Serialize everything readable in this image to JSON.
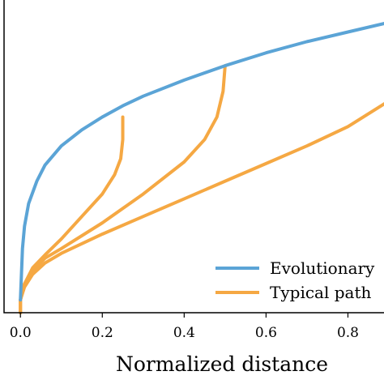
{
  "chart_data": {
    "type": "line",
    "title": "",
    "xlabel": "Normalized distance",
    "ylabel": "",
    "xlim": [
      -0.04,
      0.9
    ],
    "ylim": [
      0,
      1
    ],
    "x_ticks": [
      0.0,
      0.2,
      0.4,
      0.6,
      0.8
    ],
    "x_tick_labels": [
      "0.0",
      "0.2",
      "0.4",
      "0.6",
      "0.8"
    ],
    "grid": false,
    "legend": {
      "placement": "bottom-right",
      "entries": [
        {
          "label": "Evolutionary",
          "color": "#5ba4d6"
        },
        {
          "label": "Typical path",
          "color": "#f5a843"
        }
      ]
    },
    "series": [
      {
        "name": "Evolutionary",
        "color": "#5ba4d6",
        "x": [
          0.0,
          0.005,
          0.01,
          0.02,
          0.04,
          0.06,
          0.1,
          0.15,
          0.2,
          0.25,
          0.3,
          0.4,
          0.5,
          0.6,
          0.7,
          0.8,
          0.9
        ],
        "y": [
          0.04,
          0.2,
          0.27,
          0.34,
          0.41,
          0.46,
          0.52,
          0.57,
          0.61,
          0.645,
          0.675,
          0.725,
          0.77,
          0.81,
          0.845,
          0.875,
          0.905
        ]
      },
      {
        "name": "Typical path",
        "color": "#f5a843",
        "x": [
          0.0,
          0.0,
          0.01,
          0.03,
          0.06,
          0.1,
          0.15,
          0.2,
          0.23,
          0.245,
          0.25,
          0.25
        ],
        "y": [
          0.0,
          0.04,
          0.09,
          0.14,
          0.18,
          0.23,
          0.3,
          0.37,
          0.43,
          0.48,
          0.54,
          0.61
        ]
      },
      {
        "name": "Typical path",
        "color": "#f5a843",
        "x": [
          0.0,
          0.0,
          0.01,
          0.03,
          0.06,
          0.1,
          0.2,
          0.3,
          0.4,
          0.45,
          0.48,
          0.495,
          0.5
        ],
        "y": [
          0.0,
          0.04,
          0.09,
          0.13,
          0.17,
          0.2,
          0.28,
          0.37,
          0.47,
          0.54,
          0.61,
          0.69,
          0.77
        ]
      },
      {
        "name": "Typical path",
        "color": "#f5a843",
        "x": [
          0.0,
          0.0,
          0.01,
          0.03,
          0.06,
          0.1,
          0.2,
          0.3,
          0.4,
          0.5,
          0.6,
          0.7,
          0.8,
          0.9
        ],
        "y": [
          0.0,
          0.04,
          0.08,
          0.12,
          0.155,
          0.185,
          0.245,
          0.3,
          0.355,
          0.41,
          0.465,
          0.52,
          0.58,
          0.66
        ]
      }
    ]
  }
}
